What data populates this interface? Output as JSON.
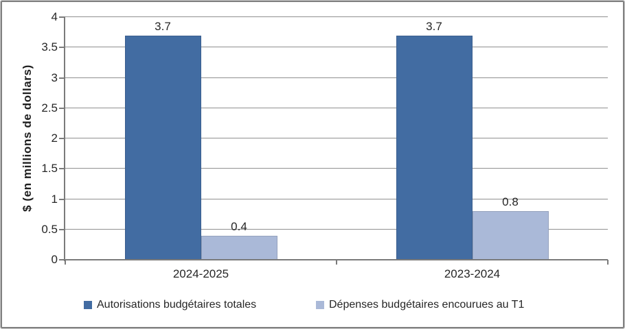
{
  "chart_data": {
    "type": "bar",
    "title": "",
    "xlabel": "",
    "ylabel": "$ (en millions de dollars)",
    "ylim": [
      0,
      4
    ],
    "ytick_values": [
      0,
      0.5,
      1,
      1.5,
      2,
      2.5,
      3,
      3.5,
      4
    ],
    "ytick_labels": [
      "0",
      "0.5",
      "1",
      "1.5",
      "2",
      "2.5",
      "3",
      "3.5",
      "4"
    ],
    "grid": true,
    "legend_position": "bottom",
    "categories": [
      "2024-2025",
      "2023-2024"
    ],
    "series": [
      {
        "name": "Autorisations budgétaires totales",
        "color": "#426CA2",
        "values": [
          3.7,
          3.7
        ],
        "data_labels": [
          "3.7",
          "3.7"
        ]
      },
      {
        "name": "Dépenses budgétaires encourues au T1",
        "color": "#AAB9D8",
        "values": [
          0.4,
          0.8
        ],
        "data_labels": [
          "0.4",
          "0.8"
        ]
      }
    ],
    "colors": {
      "grid": "#8F8F8F",
      "axis": "#7A7A7A",
      "text": "#262626",
      "frame_outer": "#C9C9C9",
      "frame_inner": "#7F7F7F",
      "background": "#FFFFFF"
    }
  }
}
